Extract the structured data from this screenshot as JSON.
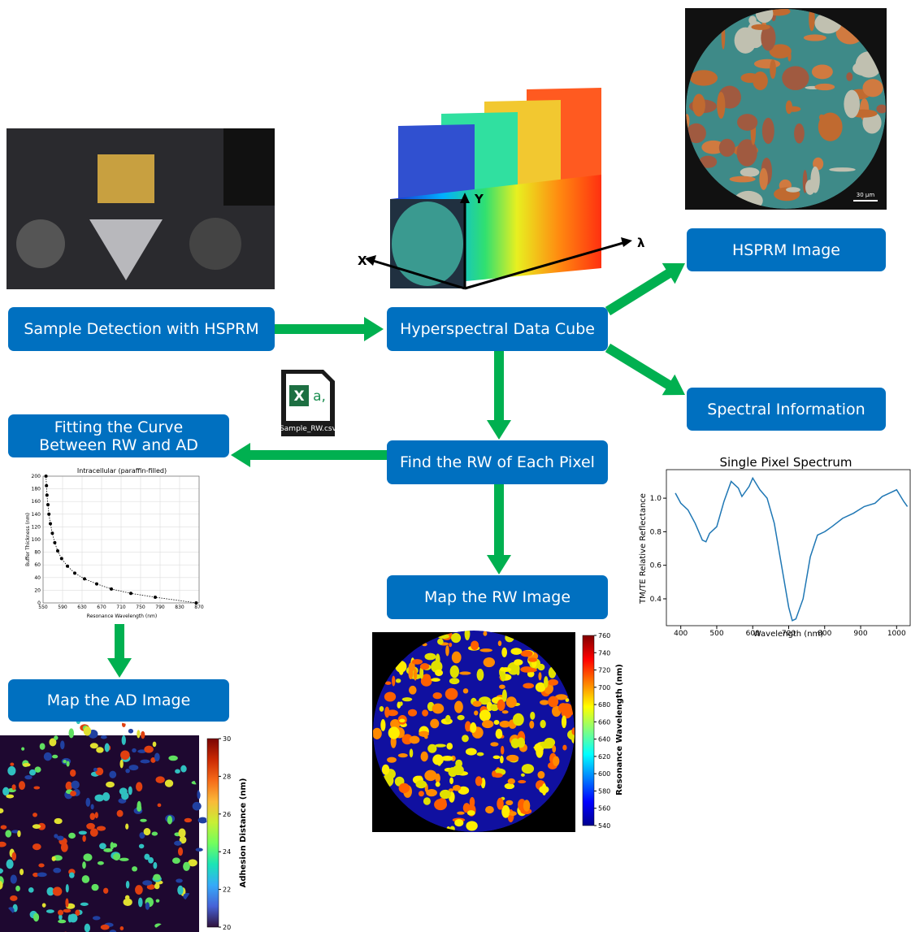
{
  "nodes": [
    {
      "label": "Sample Detection with HSPRM"
    },
    {
      "label": "Hyperspectral Data Cube"
    },
    {
      "label": "HSPRM Image"
    },
    {
      "label": "Spectral Information"
    },
    {
      "label": "Find the RW of Each Pixel"
    },
    {
      "label": "Fitting the Curve Between RW and AD"
    },
    {
      "label": "Map the RW Image"
    },
    {
      "label": "Map the AD Image"
    }
  ],
  "cube_axes": {
    "x": "X",
    "y": "Y",
    "lambda": "λ"
  },
  "file_icon": {
    "badge": "X",
    "glyph": "a,",
    "name": "Sample_RW.csv"
  },
  "scale_bar": "30 μm",
  "spectrum_chart": {
    "type": "line",
    "title": "Single Pixel Spectrum",
    "xlabel": "Wavelength (nm)",
    "ylabel": "TM/TE Relative Reflectance",
    "color": "#1f77b4",
    "x": [
      385,
      400,
      420,
      440,
      460,
      470,
      480,
      500,
      520,
      540,
      560,
      570,
      590,
      600,
      620,
      640,
      660,
      680,
      700,
      710,
      720,
      740,
      760,
      780,
      800,
      820,
      850,
      880,
      910,
      940,
      960,
      980,
      1000,
      1020,
      1030
    ],
    "values": [
      1.03,
      0.97,
      0.93,
      0.85,
      0.75,
      0.74,
      0.79,
      0.83,
      0.98,
      1.1,
      1.06,
      1.01,
      1.07,
      1.12,
      1.05,
      1.0,
      0.85,
      0.6,
      0.35,
      0.27,
      0.28,
      0.4,
      0.65,
      0.78,
      0.8,
      0.83,
      0.88,
      0.91,
      0.95,
      0.97,
      1.01,
      1.03,
      1.05,
      0.98,
      0.95
    ],
    "xlim": [
      360,
      1040
    ],
    "ylim": [
      0.24,
      1.17
    ],
    "xticks": [
      400,
      500,
      600,
      700,
      800,
      900,
      1000
    ],
    "yticks": [
      0.4,
      0.6,
      0.8,
      {
        "value": 1,
        "label": "1.0"
      }
    ]
  },
  "fitting_chart": {
    "type": "scatter",
    "title": "Intracellular (paraffin-filled)",
    "xlabel": "Resonance Wavelength (nm)",
    "ylabel": "Buffer Thickness (nm)",
    "color": "#000000",
    "x": [
      556,
      557,
      558,
      560,
      562,
      565,
      569,
      574,
      580,
      588,
      600,
      615,
      635,
      660,
      690,
      730,
      780,
      864
    ],
    "values": [
      200,
      185,
      170,
      155,
      140,
      125,
      110,
      95,
      82,
      70,
      58,
      47,
      38,
      30,
      22,
      15,
      9,
      0
    ],
    "xlim": [
      550,
      870
    ],
    "ylim": [
      0,
      200
    ],
    "xticks": [
      550,
      590,
      630,
      670,
      710,
      750,
      790,
      830,
      870
    ],
    "yticks": [
      0,
      20,
      40,
      60,
      80,
      100,
      120,
      140,
      160,
      180,
      200
    ],
    "grid": true
  },
  "rw_colorbar": {
    "label": "Resonance Wavelength (nm)",
    "lim": [
      540,
      760
    ],
    "ticks": [
      540,
      560,
      580,
      600,
      620,
      640,
      660,
      680,
      700,
      720,
      740,
      760
    ],
    "colormap": [
      "#00008f",
      "#0000ff",
      "#0080ff",
      "#00ffff",
      "#80ff80",
      "#ffff00",
      "#ff8000",
      "#ff0000",
      "#800000"
    ]
  },
  "ad_colorbar": {
    "label": "Adhesion Distance (nm)",
    "lim": [
      20,
      30
    ],
    "ticks": [
      20,
      22,
      24,
      26,
      28,
      30
    ],
    "colormap": [
      "#30123b",
      "#4662d7",
      "#36aaf9",
      "#1ae4b6",
      "#72fe5e",
      "#c8ef34",
      "#faba39",
      "#f66b19",
      "#ca2a04",
      "#7a0403"
    ]
  }
}
